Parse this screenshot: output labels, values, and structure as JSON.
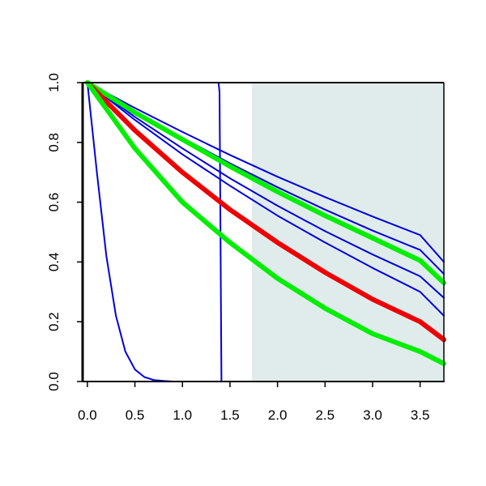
{
  "chart_data": {
    "type": "line",
    "title": "",
    "xlabel": "",
    "ylabel": "",
    "xlim": [
      -0.05,
      3.75
    ],
    "ylim": [
      0.0,
      1.0
    ],
    "x_ticks": [
      0.0,
      0.5,
      1.0,
      1.5,
      2.0,
      2.5,
      3.0,
      3.5
    ],
    "x_tick_labels": [
      "0.0",
      "0.5",
      "1.0",
      "1.5",
      "2.0",
      "2.5",
      "3.0",
      "3.5"
    ],
    "y_ticks": [
      0.0,
      0.2,
      0.4,
      0.6,
      0.8,
      1.0
    ],
    "y_tick_labels": [
      "0.0",
      "0.2",
      "0.4",
      "0.6",
      "0.8",
      "1.0"
    ],
    "grid": false,
    "legend": "none",
    "shaded_region": {
      "x_from": 1.73,
      "x_to": 3.75,
      "color": "#e0ecec"
    },
    "series": [
      {
        "color": "#0000dd",
        "stroke": "thin",
        "x": [
          0.0,
          0.1,
          0.2,
          0.3,
          0.4,
          0.5,
          0.6,
          0.7,
          0.8,
          0.9,
          1.0,
          1.2,
          1.5,
          2.0,
          3.0,
          3.75
        ],
        "y": [
          1.0,
          0.7,
          0.42,
          0.22,
          0.1,
          0.04,
          0.015,
          0.005,
          0.002,
          0.0,
          0.0,
          0.0,
          0.0,
          0.0,
          0.0,
          0.0
        ]
      },
      {
        "color": "#0000dd",
        "stroke": "thin",
        "x": [
          0.0,
          1.38,
          1.39,
          1.4,
          1.41,
          2.0,
          3.0,
          3.75
        ],
        "y": [
          1.0,
          1.0,
          0.97,
          0.5,
          0.0,
          0.0,
          0.0,
          0.0
        ]
      },
      {
        "color": "#0000dd",
        "stroke": "thin",
        "x": [
          0.0,
          0.5,
          1.0,
          1.5,
          2.0,
          2.5,
          3.0,
          3.5,
          3.75
        ],
        "y": [
          1.0,
          0.915,
          0.835,
          0.758,
          0.685,
          0.617,
          0.552,
          0.49,
          0.4
        ]
      },
      {
        "color": "#0000dd",
        "stroke": "thin",
        "x": [
          0.0,
          0.5,
          1.0,
          1.5,
          2.0,
          2.5,
          3.0,
          3.5,
          3.75
        ],
        "y": [
          1.0,
          0.905,
          0.815,
          0.73,
          0.65,
          0.575,
          0.505,
          0.44,
          0.36
        ]
      },
      {
        "color": "#0000dd",
        "stroke": "thin",
        "x": [
          0.0,
          0.5,
          1.0,
          1.5,
          2.0,
          2.5,
          3.0,
          3.5,
          3.75
        ],
        "y": [
          1.0,
          0.885,
          0.78,
          0.68,
          0.588,
          0.503,
          0.425,
          0.352,
          0.28
        ]
      },
      {
        "color": "#0000dd",
        "stroke": "thin",
        "x": [
          0.0,
          0.5,
          1.0,
          1.5,
          2.0,
          2.5,
          3.0,
          3.5,
          3.75
        ],
        "y": [
          1.0,
          0.875,
          0.76,
          0.655,
          0.555,
          0.465,
          0.38,
          0.3,
          0.22
        ]
      },
      {
        "color": "#00ee00",
        "stroke": "thick",
        "x": [
          0.0,
          0.5,
          1.0,
          1.5,
          2.0,
          2.5,
          3.0,
          3.5,
          3.75
        ],
        "y": [
          1.0,
          0.9,
          0.81,
          0.72,
          0.635,
          0.555,
          0.48,
          0.405,
          0.33
        ]
      },
      {
        "color": "#ee0000",
        "stroke": "thick",
        "x": [
          0.0,
          0.5,
          1.0,
          1.5,
          2.0,
          2.5,
          3.0,
          3.5,
          3.75
        ],
        "y": [
          1.0,
          0.84,
          0.7,
          0.575,
          0.465,
          0.365,
          0.275,
          0.2,
          0.14
        ]
      },
      {
        "color": "#00ee00",
        "stroke": "thick",
        "x": [
          0.0,
          0.5,
          1.0,
          1.5,
          2.0,
          2.5,
          3.0,
          3.5,
          3.75
        ],
        "y": [
          1.0,
          0.78,
          0.6,
          0.465,
          0.345,
          0.245,
          0.16,
          0.1,
          0.06
        ]
      }
    ]
  }
}
